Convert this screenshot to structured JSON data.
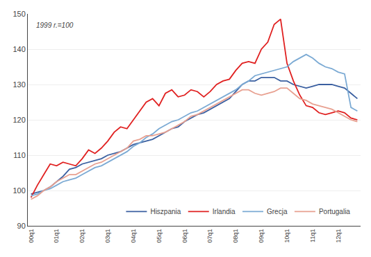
{
  "chart_data": {
    "type": "line",
    "annotation": "1999 r.=100",
    "categories": [
      "00q1",
      null,
      null,
      null,
      "01q1",
      null,
      null,
      null,
      "02q1",
      null,
      null,
      null,
      "03q1",
      null,
      null,
      null,
      "04q1",
      null,
      null,
      null,
      "05q1",
      null,
      null,
      null,
      "06q1",
      null,
      null,
      null,
      "07q1",
      null,
      null,
      null,
      "08q1",
      null,
      null,
      null,
      "09q1",
      null,
      null,
      null,
      "10q1",
      null,
      null,
      null,
      "11q1",
      null,
      null,
      null,
      "12q1",
      null,
      null,
      null
    ],
    "series": [
      {
        "name": "Hiszpania",
        "color": "#3a5fa0",
        "values": [
          99.0,
          99.5,
          100.0,
          101.0,
          102.5,
          104.0,
          106.0,
          106.5,
          107.5,
          108.0,
          108.5,
          109.0,
          110.0,
          110.5,
          111.0,
          112.0,
          113.0,
          113.5,
          114.0,
          114.5,
          115.5,
          116.5,
          117.5,
          118.0,
          119.5,
          120.5,
          121.5,
          122.0,
          123.0,
          124.0,
          125.0,
          126.0,
          128.0,
          130.0,
          131.0,
          131.0,
          132.0,
          132.0,
          132.0,
          131.0,
          131.0,
          130.0,
          129.5,
          129.0,
          129.5,
          130.0,
          130.0,
          130.0,
          129.5,
          129.0,
          127.5,
          126.0
        ]
      },
      {
        "name": "Irlandia",
        "color": "#e02020",
        "values": [
          98.0,
          101.5,
          104.5,
          107.5,
          107.0,
          108.0,
          107.5,
          107.0,
          109.0,
          111.5,
          110.5,
          112.0,
          114.0,
          116.5,
          118.0,
          117.5,
          120.0,
          122.5,
          125.0,
          126.0,
          124.0,
          127.5,
          128.5,
          126.5,
          127.0,
          128.5,
          128.0,
          126.5,
          128.0,
          130.0,
          131.0,
          131.5,
          134.0,
          136.0,
          136.5,
          136.0,
          140.0,
          142.0,
          147.0,
          148.5,
          136.0,
          131.0,
          127.0,
          124.0,
          123.5,
          122.0,
          121.5,
          122.0,
          122.5,
          122.0,
          120.5,
          120.0
        ]
      },
      {
        "name": "Grecja",
        "color": "#7baad4",
        "values": [
          98.5,
          99.0,
          100.0,
          100.5,
          101.5,
          102.5,
          103.0,
          103.5,
          104.5,
          105.5,
          106.5,
          107.0,
          108.0,
          109.0,
          110.0,
          111.0,
          112.5,
          113.5,
          115.0,
          116.0,
          117.5,
          118.5,
          119.5,
          120.0,
          121.0,
          122.0,
          122.5,
          123.5,
          124.5,
          125.5,
          126.5,
          127.5,
          128.5,
          130.0,
          131.0,
          132.5,
          133.0,
          133.5,
          134.0,
          134.5,
          135.0,
          136.5,
          137.5,
          138.5,
          137.5,
          136.0,
          135.0,
          134.5,
          133.5,
          133.0,
          123.5,
          122.5
        ]
      },
      {
        "name": "Portugalia",
        "color": "#e8a090",
        "values": [
          97.5,
          98.5,
          100.0,
          101.0,
          102.5,
          103.5,
          104.5,
          104.5,
          105.5,
          106.5,
          107.5,
          108.0,
          109.0,
          110.0,
          111.0,
          112.0,
          114.0,
          114.5,
          115.5,
          115.5,
          116.0,
          116.5,
          117.5,
          118.5,
          119.5,
          121.0,
          121.5,
          122.5,
          123.5,
          124.5,
          125.5,
          126.5,
          127.5,
          128.5,
          128.5,
          127.5,
          127.0,
          127.5,
          128.0,
          129.0,
          129.0,
          127.5,
          126.0,
          125.5,
          124.5,
          124.0,
          123.5,
          123.0,
          122.0,
          121.0,
          120.0,
          119.5
        ]
      }
    ],
    "ylim": [
      90,
      150
    ],
    "yticks": [
      90,
      100,
      110,
      120,
      130,
      140,
      150
    ],
    "grid": true,
    "legend": "lower right"
  }
}
